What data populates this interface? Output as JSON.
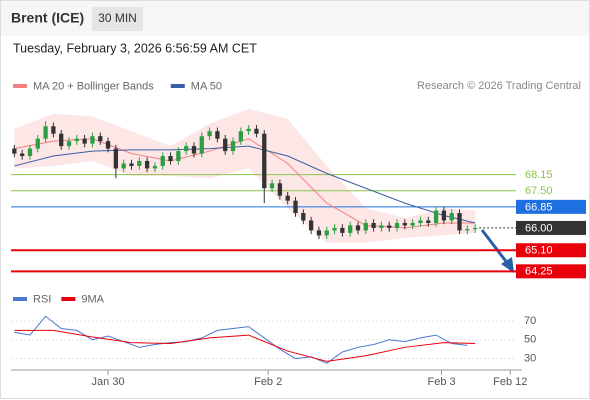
{
  "header": {
    "symbol": "Brent (ICE)",
    "interval": "30 MIN",
    "timestamp": "Tuesday, February 3, 2026 6:56:59 AM CET",
    "credit": "Research © 2026 Trading Central"
  },
  "chart_data": [
    {
      "type": "candlestick",
      "up_color": "#2e9e44",
      "down_color": "#333333",
      "open": [
        69.2,
        69.0,
        68.9,
        69.2,
        69.6,
        70.1,
        69.8,
        69.3,
        69.5,
        69.6,
        69.4,
        69.7,
        69.5,
        69.2,
        68.4,
        68.6,
        68.5,
        68.7,
        68.4,
        68.5,
        68.9,
        68.7,
        69.1,
        69.3,
        69.0,
        69.7,
        69.9,
        69.6,
        69.1,
        69.5,
        69.9,
        70.0,
        69.8,
        67.6,
        67.8,
        67.3,
        67.1,
        66.6,
        66.3,
        65.9,
        65.7,
        65.9,
        66.0,
        65.8,
        66.1,
        65.9,
        66.2,
        66.0,
        66.1,
        66.0,
        66.2,
        66.1,
        66.2,
        66.3,
        66.2,
        66.7,
        66.3,
        66.6,
        65.9,
        65.95
      ],
      "high": [
        69.35,
        69.15,
        69.35,
        69.75,
        70.3,
        70.25,
        69.95,
        69.65,
        69.75,
        69.75,
        69.85,
        69.85,
        69.65,
        69.35,
        68.75,
        68.75,
        68.85,
        68.85,
        68.65,
        69.05,
        69.05,
        69.25,
        69.45,
        69.45,
        69.85,
        70.05,
        70.05,
        69.75,
        69.65,
        70.05,
        70.15,
        70.15,
        69.95,
        67.95,
        67.95,
        67.45,
        67.25,
        66.75,
        66.45,
        66.05,
        66.05,
        66.15,
        66.15,
        66.25,
        66.25,
        66.35,
        66.35,
        66.25,
        66.25,
        66.35,
        66.35,
        66.35,
        66.45,
        66.45,
        66.85,
        66.85,
        66.75,
        66.75,
        66.1,
        66.15
      ],
      "low": [
        68.85,
        68.75,
        68.75,
        69.05,
        69.45,
        69.65,
        69.15,
        69.15,
        69.35,
        69.25,
        69.25,
        69.35,
        69.05,
        68.0,
        68.25,
        68.35,
        68.35,
        68.25,
        68.25,
        68.35,
        68.55,
        68.55,
        68.95,
        68.85,
        68.85,
        69.55,
        69.45,
        68.95,
        68.95,
        69.35,
        69.75,
        69.65,
        67.0,
        67.45,
        67.15,
        66.95,
        66.45,
        66.15,
        65.75,
        65.55,
        65.55,
        65.75,
        65.65,
        65.65,
        65.75,
        65.75,
        65.85,
        65.85,
        65.85,
        65.85,
        65.95,
        65.95,
        66.05,
        66.05,
        66.05,
        66.15,
        66.15,
        65.75,
        65.75,
        65.8
      ],
      "close": [
        69.0,
        68.9,
        69.2,
        69.6,
        70.1,
        69.8,
        69.3,
        69.5,
        69.6,
        69.4,
        69.7,
        69.5,
        69.2,
        68.4,
        68.6,
        68.5,
        68.7,
        68.4,
        68.5,
        68.9,
        68.7,
        69.1,
        69.3,
        69.0,
        69.7,
        69.9,
        69.6,
        69.1,
        69.5,
        69.9,
        70.0,
        69.8,
        67.6,
        67.8,
        67.3,
        67.1,
        66.6,
        66.3,
        65.9,
        65.7,
        65.9,
        66.0,
        65.8,
        66.1,
        65.9,
        66.2,
        66.0,
        66.1,
        66.0,
        66.2,
        66.1,
        66.2,
        66.3,
        66.2,
        66.7,
        66.3,
        66.6,
        65.9,
        65.95,
        66.0
      ],
      "xlim": [
        -0.3,
        65
      ],
      "ylim": [
        63.9,
        71.2
      ],
      "xticks": [
        {
          "value": 12,
          "label": "Jan 30"
        },
        {
          "value": 32.5,
          "label": "Feb 2"
        },
        {
          "value": 54.7,
          "label": "Feb 3"
        },
        {
          "value": 63.5,
          "label": "Feb 12"
        }
      ],
      "series": [
        {
          "name": "MA 20 + Bollinger Bands",
          "color": "#f08080",
          "band_color": "#fde0e0",
          "x": [
            0,
            5,
            10,
            15,
            20,
            25,
            30,
            35,
            40,
            45,
            50,
            55,
            59
          ],
          "values": [
            69.2,
            69.5,
            69.6,
            69.0,
            68.7,
            69.1,
            69.6,
            68.6,
            67.0,
            66.1,
            66.0,
            66.2,
            66.2
          ],
          "upper": [
            70.0,
            70.6,
            70.5,
            69.9,
            69.3,
            70.2,
            70.8,
            70.4,
            68.5,
            66.8,
            66.4,
            66.8,
            66.7
          ],
          "lower": [
            68.4,
            68.5,
            68.7,
            68.1,
            68.1,
            68.0,
            68.4,
            66.8,
            65.4,
            65.4,
            65.6,
            65.7,
            65.8
          ]
        },
        {
          "name": "MA 50",
          "color": "#3a5fa8",
          "x": [
            0,
            5,
            10,
            15,
            20,
            25,
            30,
            35,
            40,
            45,
            50,
            55,
            59
          ],
          "values": [
            68.5,
            68.9,
            69.1,
            69.15,
            69.15,
            69.2,
            69.3,
            68.9,
            68.2,
            67.6,
            67.0,
            66.5,
            66.2
          ]
        }
      ],
      "levels": [
        {
          "value": 68.15,
          "label": "68.15",
          "color": "#8bc34a",
          "tag": false,
          "dash": false,
          "width": 1
        },
        {
          "value": 67.5,
          "label": "67.50",
          "color": "#8bc34a",
          "tag": false,
          "dash": false,
          "width": 1
        },
        {
          "value": 66.85,
          "label": "66.85",
          "color": "#1e6fe0",
          "tag": true,
          "dash": false,
          "width": 1
        },
        {
          "value": 66.0,
          "label": "66.00",
          "color": "#333333",
          "tag": true,
          "dash": true,
          "width": 1
        },
        {
          "value": 65.1,
          "label": "65.10",
          "color": "#e8000b",
          "tag": true,
          "dash": false,
          "width": 2
        },
        {
          "value": 64.25,
          "label": "64.25",
          "color": "#e8000b",
          "tag": true,
          "dash": false,
          "width": 2
        }
      ]
    },
    {
      "type": "line",
      "xlim": [
        -0.3,
        65
      ],
      "ylim": [
        20,
        87
      ],
      "yticks": [
        30,
        50,
        70
      ],
      "series": [
        {
          "name": "RSI",
          "color": "#4a78d0",
          "x": [
            0,
            2,
            4,
            6,
            8,
            10,
            12,
            14,
            16,
            18,
            20,
            22,
            24,
            26,
            28,
            30,
            32,
            34,
            36,
            38,
            40,
            42,
            44,
            46,
            48,
            50,
            52,
            54,
            56,
            58
          ],
          "values": [
            58,
            55,
            75,
            62,
            60,
            50,
            54,
            48,
            42,
            45,
            47,
            48,
            52,
            60,
            62,
            64,
            52,
            40,
            30,
            32,
            25,
            37,
            42,
            45,
            50,
            48,
            52,
            55,
            46,
            44
          ]
        },
        {
          "name": "9MA",
          "color": "#e8000b",
          "x": [
            0,
            5,
            10,
            15,
            20,
            25,
            30,
            35,
            40,
            45,
            50,
            55,
            59
          ],
          "values": [
            60,
            60,
            53,
            47,
            46,
            52,
            55,
            38,
            27,
            33,
            42,
            47,
            46
          ]
        }
      ]
    }
  ]
}
